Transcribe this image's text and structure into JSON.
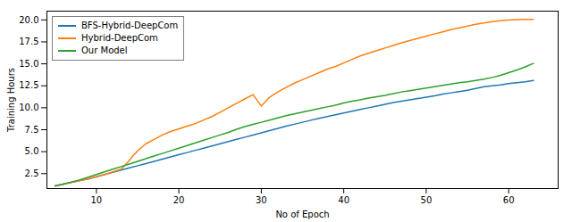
{
  "chart_data": {
    "type": "line",
    "title": "",
    "xlabel": "No of Epoch",
    "ylabel": "Training Hours",
    "xlim": [
      4,
      66
    ],
    "ylim": [
      0.8,
      21.0
    ],
    "xticks": [
      10,
      20,
      30,
      40,
      50,
      60
    ],
    "yticks": [
      2.5,
      {
        "value": 5.0,
        "label": "5.0"
      },
      7.5,
      {
        "value": 10.0,
        "label": "10.0"
      },
      12.5,
      {
        "value": 15.0,
        "label": "15.0"
      },
      17.5,
      {
        "value": 20.0,
        "label": "20.0"
      }
    ],
    "grid": false,
    "legend": "upper left",
    "series": [
      {
        "name": "BFS-Hybrid-DeepCom",
        "color": "#1f77b4",
        "x": [
          5,
          6,
          7,
          8,
          9,
          10,
          11,
          12,
          13,
          14,
          15,
          16,
          17,
          18,
          19,
          20,
          21,
          22,
          23,
          24,
          25,
          26,
          27,
          28,
          29,
          30,
          31,
          32,
          33,
          34,
          35,
          36,
          37,
          38,
          39,
          40,
          41,
          42,
          43,
          44,
          45,
          46,
          47,
          48,
          49,
          50,
          51,
          52,
          53,
          54,
          55,
          56,
          57,
          58,
          59,
          60,
          61,
          62,
          63
        ],
        "values": [
          1.1,
          1.3,
          1.5,
          1.7,
          1.9,
          2.15,
          2.4,
          2.65,
          2.9,
          3.15,
          3.4,
          3.65,
          3.9,
          4.15,
          4.4,
          4.65,
          4.9,
          5.15,
          5.4,
          5.65,
          5.9,
          6.15,
          6.4,
          6.65,
          6.9,
          7.15,
          7.4,
          7.65,
          7.9,
          8.12,
          8.35,
          8.58,
          8.8,
          9.0,
          9.2,
          9.4,
          9.6,
          9.8,
          10.0,
          10.2,
          10.4,
          10.6,
          10.75,
          10.9,
          11.05,
          11.2,
          11.35,
          11.55,
          11.7,
          11.85,
          12.0,
          12.2,
          12.4,
          12.5,
          12.6,
          12.75,
          12.85,
          12.95,
          13.1
        ]
      },
      {
        "name": "Hybrid-DeepCom",
        "color": "#ff7f0e",
        "x": [
          5,
          6,
          7,
          8,
          9,
          10,
          11,
          12,
          13,
          13.5,
          14,
          14.5,
          15,
          15.5,
          16,
          17,
          18,
          19,
          20,
          21,
          22,
          23,
          24,
          25,
          26,
          27,
          28,
          29,
          30,
          31,
          32,
          33,
          34,
          35,
          36,
          37,
          38,
          39,
          40,
          41,
          42,
          43,
          44,
          45,
          46,
          47,
          48,
          49,
          50,
          51,
          52,
          53,
          54,
          55,
          56,
          57,
          58,
          59,
          60,
          61,
          62,
          63
        ],
        "values": [
          1.1,
          1.3,
          1.5,
          1.7,
          1.9,
          2.15,
          2.4,
          2.7,
          3.0,
          3.5,
          4.0,
          4.6,
          5.1,
          5.5,
          5.9,
          6.4,
          6.9,
          7.3,
          7.6,
          7.9,
          8.2,
          8.6,
          9.0,
          9.5,
          10.0,
          10.5,
          11.0,
          11.5,
          10.2,
          11.2,
          11.8,
          12.3,
          12.8,
          13.2,
          13.6,
          14.0,
          14.4,
          14.7,
          15.1,
          15.5,
          15.9,
          16.2,
          16.5,
          16.8,
          17.1,
          17.4,
          17.65,
          17.9,
          18.15,
          18.4,
          18.65,
          18.9,
          19.1,
          19.3,
          19.5,
          19.65,
          19.8,
          19.9,
          19.98,
          20.03,
          20.05,
          20.05
        ]
      },
      {
        "name": "Our Model",
        "color": "#2ca02c",
        "x": [
          5,
          6,
          7,
          8,
          9,
          10,
          11,
          12,
          13,
          14,
          15,
          16,
          17,
          18,
          19,
          20,
          21,
          22,
          23,
          24,
          25,
          26,
          27,
          28,
          29,
          30,
          31,
          32,
          33,
          34,
          35,
          36,
          37,
          38,
          39,
          40,
          41,
          42,
          43,
          44,
          45,
          46,
          47,
          48,
          49,
          50,
          51,
          52,
          53,
          54,
          55,
          56,
          57,
          58,
          59,
          60,
          61,
          62,
          63
        ],
        "values": [
          1.1,
          1.3,
          1.55,
          1.8,
          2.1,
          2.4,
          2.7,
          3.0,
          3.3,
          3.6,
          3.9,
          4.2,
          4.5,
          4.8,
          5.1,
          5.4,
          5.7,
          6.0,
          6.3,
          6.6,
          6.9,
          7.2,
          7.55,
          7.85,
          8.1,
          8.35,
          8.6,
          8.85,
          9.1,
          9.3,
          9.5,
          9.7,
          9.9,
          10.1,
          10.3,
          10.55,
          10.75,
          10.9,
          11.1,
          11.25,
          11.4,
          11.6,
          11.8,
          11.95,
          12.1,
          12.25,
          12.4,
          12.55,
          12.7,
          12.85,
          12.95,
          13.1,
          13.25,
          13.45,
          13.7,
          14.0,
          14.3,
          14.65,
          15.05
        ]
      }
    ]
  }
}
